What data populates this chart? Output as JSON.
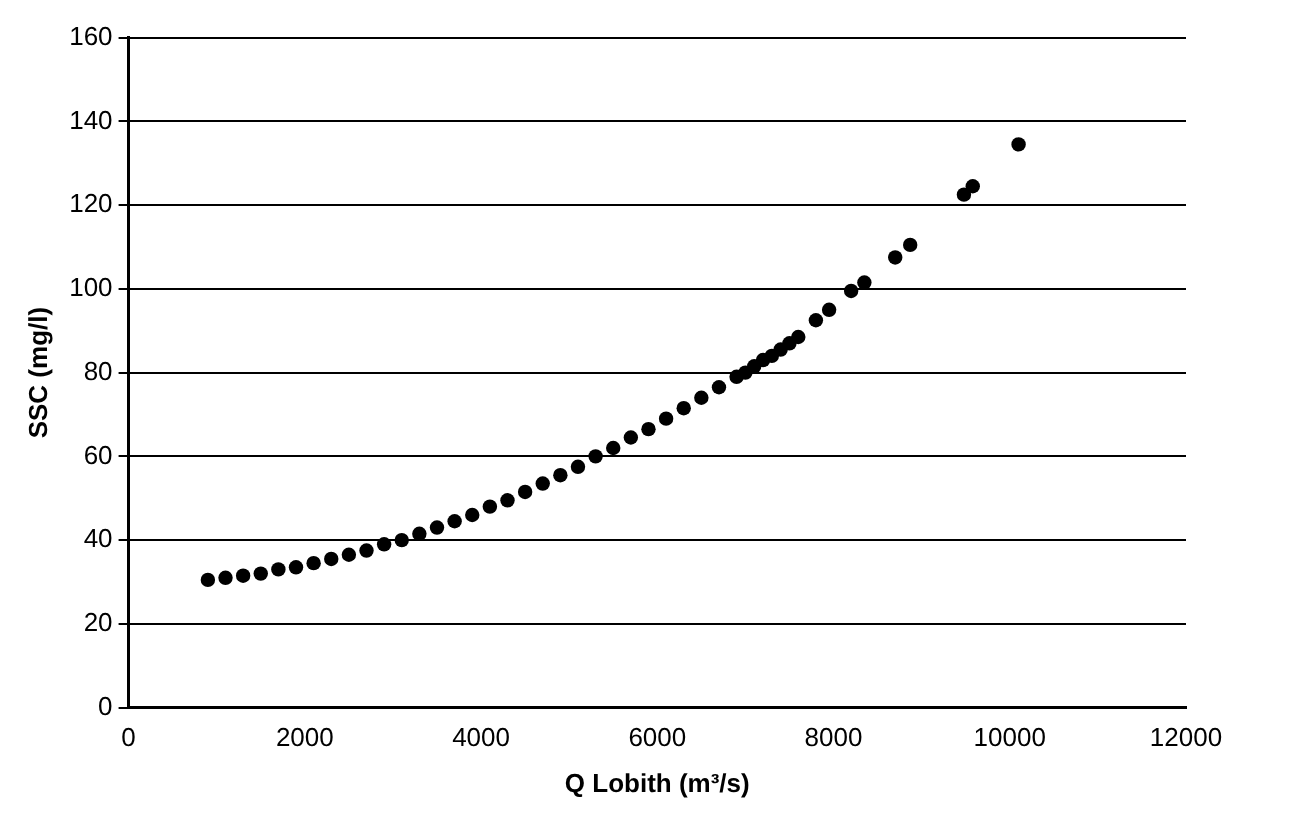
{
  "chart_data": {
    "type": "scatter",
    "xlabel": "Q Lobith (m³/s)",
    "ylabel": "SSC (mg/l)",
    "xlim": [
      0,
      12000
    ],
    "xticks": [
      0,
      2000,
      4000,
      6000,
      8000,
      10000,
      12000
    ],
    "ylim": [
      0,
      160
    ],
    "yticks": [
      0,
      20,
      40,
      60,
      80,
      100,
      120,
      140,
      160
    ],
    "grid": "y",
    "marker": "circle",
    "legend": false,
    "series": [
      {
        "color": "#000000",
        "x": [
          900,
          1100,
          1300,
          1500,
          1700,
          1900,
          2100,
          2300,
          2500,
          2700,
          2900,
          3100,
          3300,
          3500,
          3700,
          3900,
          4100,
          4300,
          4500,
          4700,
          4900,
          5100,
          5300,
          5500,
          5700,
          5900,
          6100,
          6300,
          6500,
          6700,
          6900,
          7000,
          7100,
          7200,
          7300,
          7400,
          7500,
          7600,
          7800,
          7950,
          8200,
          8350,
          8700,
          8870,
          9480,
          9580,
          10100
        ],
        "values": [
          30.5,
          31,
          31.5,
          32,
          33,
          33.5,
          34.5,
          35.5,
          36.5,
          37.5,
          39,
          40,
          41.5,
          43,
          44.5,
          46,
          48,
          49.5,
          51.5,
          53.5,
          55.5,
          57.5,
          60,
          62,
          64.5,
          66.5,
          69,
          71.5,
          74,
          76.5,
          79,
          80,
          81.5,
          83,
          84,
          85.5,
          87,
          88.5,
          92.5,
          95,
          99.5,
          101.5,
          107.5,
          110.5,
          122.5,
          124.5,
          134.5
        ]
      }
    ]
  }
}
